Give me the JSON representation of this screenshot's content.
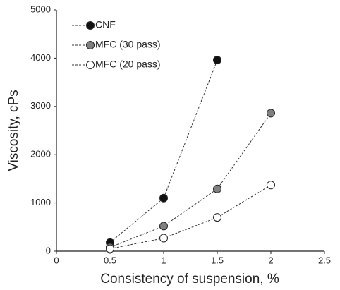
{
  "chart_data": {
    "type": "line",
    "xlabel": "Consistency of suspension, %",
    "ylabel": "Viscosity, cPs",
    "x": [
      0.5,
      1,
      1.5,
      2
    ],
    "series": [
      {
        "name": "CNF",
        "color": "#111111",
        "values": [
          180,
          1100,
          3960,
          null
        ]
      },
      {
        "name": "MFC (30 pass)",
        "color": "#808080",
        "values": [
          80,
          520,
          1290,
          2860
        ]
      },
      {
        "name": "MFC (20 pass)",
        "color": "#ffffff",
        "values": [
          50,
          270,
          700,
          1370
        ]
      }
    ],
    "xlim": [
      0,
      2.5
    ],
    "xticks": [
      0,
      0.5,
      1,
      1.5,
      2,
      2.5
    ],
    "ylim": [
      0,
      5000
    ],
    "yticks": [
      0,
      1000,
      2000,
      3000,
      4000,
      5000
    ],
    "legend": "upper left",
    "grid": false
  }
}
